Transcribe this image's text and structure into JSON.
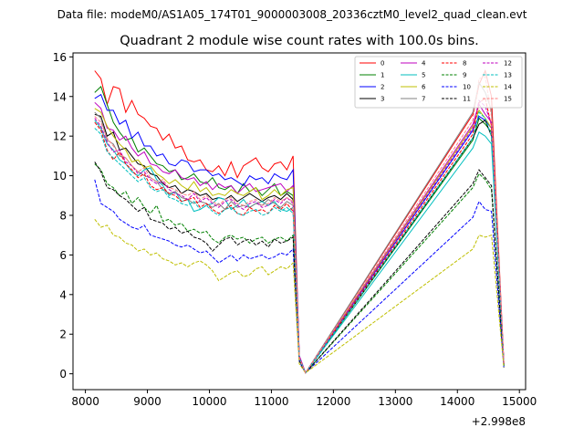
{
  "header": {
    "data_file": "Data file: modeM0/AS1A05_174T01_9000003008_20336cztM0_level2_quad_clean.evt"
  },
  "chart_data": {
    "type": "line",
    "title": "Quadrant 2 module wise count rates with 100.0s bins.",
    "xlabel": "",
    "ylabel": "",
    "x_offset_label": "+2.998e8",
    "xlim": [
      7800,
      15100
    ],
    "ylim": [
      -0.8,
      16.2
    ],
    "x_ticks": [
      8000,
      9000,
      10000,
      11000,
      12000,
      13000,
      14000,
      15000
    ],
    "x_tick_labels": [
      "8000",
      "9000",
      "10000",
      "11000",
      "12000",
      "13000",
      "14000",
      "15000"
    ],
    "y_ticks": [
      0,
      2,
      4,
      6,
      8,
      10,
      12,
      14,
      16
    ],
    "y_tick_labels": [
      "0",
      "2",
      "4",
      "6",
      "8",
      "10",
      "12",
      "14",
      "16"
    ],
    "legend_position": "top-right",
    "segment1": {
      "x_start": 8150,
      "x_step": 100,
      "note": "per-module count rates for x = 8150 ... 11350 (33 bins)"
    },
    "series": [
      {
        "name": "0",
        "color": "#ff0000",
        "dash": "solid",
        "seg1": [
          15.3,
          14.9,
          13.6,
          14.5,
          14.4,
          13.2,
          13.8,
          13.1,
          12.9,
          12.5,
          12.4,
          11.8,
          12.1,
          11.4,
          11.5,
          10.8,
          10.7,
          10.8,
          10.3,
          10.2,
          10.5,
          10.0,
          10.7,
          9.9,
          10.5,
          10.7,
          10.9,
          10.4,
          10.2,
          10.6,
          10.7,
          10.3,
          11.0
        ],
        "tail": [
          0.9,
          0.05,
          13.1,
          14.6,
          15.3,
          14.0,
          0.5
        ]
      },
      {
        "name": "1",
        "color": "#008000",
        "dash": "solid",
        "seg1": [
          14.2,
          14.5,
          13.6,
          12.7,
          12.2,
          11.8,
          11.9,
          11.2,
          11.4,
          11.0,
          10.6,
          10.5,
          10.2,
          10.3,
          9.8,
          9.9,
          10.1,
          9.7,
          9.6,
          9.9,
          9.4,
          9.3,
          9.5,
          9.1,
          9.6,
          9.2,
          9.4,
          9.0,
          9.3,
          9.6,
          9.0,
          9.2,
          9.0
        ],
        "tail": [
          0.8,
          0.05,
          11.8,
          12.9,
          12.6,
          12.2,
          0.4
        ]
      },
      {
        "name": "2",
        "color": "#0000ff",
        "dash": "solid",
        "seg1": [
          13.9,
          14.1,
          13.3,
          13.3,
          12.6,
          12.8,
          11.9,
          12.2,
          11.5,
          11.5,
          11.0,
          11.1,
          10.6,
          10.5,
          10.8,
          10.7,
          10.2,
          10.3,
          10.3,
          10.0,
          10.1,
          9.8,
          9.9,
          9.7,
          9.5,
          10.0,
          9.8,
          9.9,
          9.6,
          10.1,
          9.9,
          9.8,
          10.3
        ],
        "tail": [
          0.9,
          0.05,
          12.3,
          13.0,
          12.8,
          12.4,
          0.5
        ]
      },
      {
        "name": "3",
        "color": "#000000",
        "dash": "solid",
        "seg1": [
          13.1,
          13.0,
          12.0,
          12.2,
          11.3,
          11.4,
          11.0,
          10.6,
          10.5,
          10.1,
          10.0,
          9.6,
          9.4,
          9.5,
          9.1,
          9.3,
          9.2,
          9.0,
          9.1,
          8.8,
          8.9,
          8.8,
          9.0,
          8.7,
          8.9,
          9.1,
          8.9,
          8.7,
          8.9,
          9.0,
          8.8,
          9.1,
          8.8
        ],
        "tail": [
          0.8,
          0.05,
          11.9,
          12.6,
          12.8,
          12.0,
          0.4
        ]
      },
      {
        "name": "4",
        "color": "#bf00bf",
        "dash": "solid",
        "seg1": [
          13.7,
          13.4,
          12.4,
          12.3,
          11.8,
          12.0,
          11.4,
          11.0,
          11.2,
          10.6,
          10.5,
          10.2,
          10.1,
          10.3,
          9.9,
          9.8,
          9.9,
          9.5,
          9.7,
          9.3,
          9.6,
          9.4,
          9.5,
          9.1,
          9.4,
          9.6,
          9.2,
          9.3,
          9.4,
          9.5,
          9.6,
          9.2,
          9.5
        ],
        "tail": [
          0.9,
          0.05,
          12.6,
          13.6,
          13.1,
          12.7,
          0.5
        ]
      },
      {
        "name": "5",
        "color": "#00bfbf",
        "dash": "solid",
        "seg1": [
          12.8,
          12.4,
          11.6,
          11.3,
          10.8,
          10.6,
          10.2,
          10.0,
          10.3,
          10.4,
          9.8,
          9.5,
          9.0,
          9.2,
          8.7,
          8.8,
          8.2,
          8.3,
          8.5,
          8.6,
          8.9,
          8.8,
          8.3,
          8.5,
          8.8,
          8.4,
          8.6,
          8.7,
          8.5,
          8.7,
          8.3,
          8.2,
          8.4
        ],
        "tail": [
          0.7,
          0.05,
          11.4,
          12.2,
          12.0,
          11.6,
          0.4
        ]
      },
      {
        "name": "6",
        "color": "#bfbf00",
        "dash": "solid",
        "seg1": [
          13.4,
          13.2,
          12.5,
          12.0,
          11.6,
          11.3,
          10.7,
          10.8,
          10.4,
          10.5,
          10.1,
          9.9,
          9.6,
          9.8,
          9.5,
          9.3,
          9.7,
          9.2,
          9.4,
          9.0,
          9.1,
          9.0,
          9.3,
          9.1,
          9.0,
          9.2,
          9.4,
          8.8,
          9.0,
          9.3,
          9.0,
          9.3,
          9.4
        ],
        "tail": [
          0.8,
          0.05,
          12.5,
          13.3,
          12.9,
          12.4,
          0.5
        ]
      },
      {
        "name": "7",
        "color": "#808080",
        "dash": "solid",
        "seg1": [
          13.2,
          12.9,
          11.8,
          11.6,
          11.0,
          10.9,
          10.5,
          10.2,
          10.0,
          9.9,
          9.7,
          9.3,
          9.1,
          9.2,
          8.9,
          8.8,
          8.6,
          8.7,
          8.6,
          8.4,
          8.6,
          8.3,
          8.7,
          8.4,
          8.5,
          8.4,
          8.6,
          8.5,
          8.8,
          8.6,
          8.4,
          8.7,
          8.5
        ],
        "tail": [
          0.8,
          0.05,
          13.2,
          14.7,
          14.2,
          13.3,
          0.5
        ]
      },
      {
        "name": "8",
        "color": "#ff0000",
        "dash": "dashed",
        "seg1": [
          12.7,
          12.3,
          11.3,
          10.8,
          11.2,
          10.6,
          10.3,
          9.9,
          10.1,
          9.5,
          9.3,
          9.4,
          9.1,
          9.0,
          8.7,
          8.8,
          8.9,
          8.4,
          8.6,
          8.3,
          8.1,
          8.3,
          8.5,
          8.1,
          8.0,
          8.4,
          8.2,
          8.3,
          8.1,
          8.5,
          8.3,
          8.6,
          8.2
        ],
        "tail": [
          0.8,
          0.05,
          12.1,
          13.7,
          13.9,
          12.5,
          0.4
        ]
      },
      {
        "name": "9",
        "color": "#008000",
        "dash": "dashed",
        "seg1": [
          10.6,
          10.3,
          9.6,
          9.4,
          9.0,
          9.2,
          8.6,
          8.9,
          8.4,
          8.1,
          8.5,
          7.7,
          7.8,
          7.5,
          7.6,
          7.2,
          7.3,
          7.1,
          7.2,
          6.8,
          6.6,
          6.9,
          7.0,
          6.8,
          6.9,
          6.6,
          6.8,
          6.9,
          6.6,
          6.8,
          6.9,
          6.7,
          7.0
        ],
        "tail": [
          0.7,
          0.05,
          9.4,
          10.1,
          9.8,
          9.3,
          0.3
        ]
      },
      {
        "name": "10",
        "color": "#0000ff",
        "dash": "dashed",
        "seg1": [
          9.8,
          8.6,
          8.4,
          8.2,
          7.8,
          7.6,
          7.4,
          7.3,
          7.5,
          7.0,
          6.9,
          6.8,
          6.7,
          6.5,
          6.4,
          6.5,
          6.3,
          6.1,
          6.2,
          5.9,
          5.6,
          5.8,
          6.0,
          5.7,
          6.0,
          5.8,
          5.9,
          6.0,
          5.8,
          5.9,
          6.1,
          6.0,
          6.3
        ],
        "tail": [
          0.6,
          0.05,
          7.9,
          8.7,
          8.3,
          8.2,
          0.3
        ]
      },
      {
        "name": "11",
        "color": "#000000",
        "dash": "dashed",
        "seg1": [
          10.7,
          10.2,
          9.4,
          9.3,
          9.0,
          8.8,
          8.5,
          8.2,
          8.4,
          7.8,
          7.7,
          7.6,
          7.3,
          7.4,
          7.1,
          7.2,
          6.9,
          6.8,
          6.6,
          6.2,
          6.5,
          6.8,
          6.9,
          6.5,
          6.7,
          6.8,
          6.5,
          6.7,
          6.4,
          6.8,
          6.6,
          6.7,
          6.9
        ],
        "tail": [
          0.7,
          0.05,
          9.6,
          10.3,
          9.9,
          9.5,
          0.4
        ]
      },
      {
        "name": "12",
        "color": "#bf00bf",
        "dash": "dashed",
        "seg1": [
          12.9,
          12.5,
          11.7,
          11.2,
          11.3,
          10.7,
          10.5,
          10.1,
          10.2,
          9.8,
          9.6,
          9.7,
          9.3,
          9.1,
          9.0,
          8.8,
          9.1,
          8.7,
          8.9,
          8.6,
          8.4,
          8.7,
          8.8,
          8.5,
          8.3,
          8.6,
          8.7,
          8.4,
          8.5,
          8.8,
          8.6,
          8.9,
          8.6
        ],
        "tail": [
          0.8,
          0.05,
          12.4,
          13.8,
          13.5,
          12.6,
          0.5
        ]
      },
      {
        "name": "13",
        "color": "#00bfbf",
        "dash": "dashed",
        "seg1": [
          12.4,
          12.1,
          11.2,
          10.9,
          10.6,
          10.3,
          10.0,
          9.7,
          9.9,
          9.4,
          9.2,
          9.3,
          8.9,
          8.8,
          8.6,
          8.5,
          8.7,
          8.3,
          8.5,
          8.2,
          8.0,
          8.3,
          8.4,
          8.1,
          8.0,
          8.2,
          8.3,
          8.0,
          8.1,
          8.4,
          8.2,
          8.4,
          8.1
        ],
        "tail": [
          0.8,
          0.05,
          11.9,
          13.2,
          12.9,
          12.0,
          0.4
        ]
      },
      {
        "name": "14",
        "color": "#bfbf00",
        "dash": "dashed",
        "seg1": [
          7.8,
          7.4,
          7.5,
          7.0,
          6.9,
          6.6,
          6.5,
          6.2,
          6.3,
          6.0,
          6.1,
          5.8,
          5.7,
          5.5,
          5.6,
          5.4,
          5.6,
          5.7,
          5.5,
          5.2,
          4.7,
          4.9,
          5.1,
          5.2,
          4.9,
          5.0,
          5.3,
          5.4,
          5.0,
          5.2,
          5.4,
          5.3,
          5.6
        ],
        "tail": [
          0.5,
          0.05,
          6.3,
          7.0,
          6.9,
          7.0,
          0.3
        ]
      },
      {
        "name": "15",
        "color": "#ff7f7f",
        "dash": "dashed",
        "seg1": [
          13.0,
          12.7,
          11.9,
          11.5,
          11.1,
          10.9,
          10.5,
          10.2,
          10.4,
          9.9,
          9.7,
          9.8,
          9.4,
          9.3,
          9.1,
          9.0,
          9.2,
          8.8,
          9.0,
          8.7,
          8.5,
          8.8,
          8.9,
          8.6,
          8.5,
          8.7,
          8.8,
          8.5,
          8.6,
          8.9,
          8.7,
          8.9,
          8.7
        ],
        "tail": [
          0.8,
          0.05,
          12.8,
          14.9,
          15.0,
          13.0,
          0.5
        ]
      }
    ],
    "tail_x": [
      11450,
      11550,
      14250,
      14350,
      14450,
      14550,
      14750
    ],
    "zero_span_x": [
      11550,
      14250
    ]
  }
}
